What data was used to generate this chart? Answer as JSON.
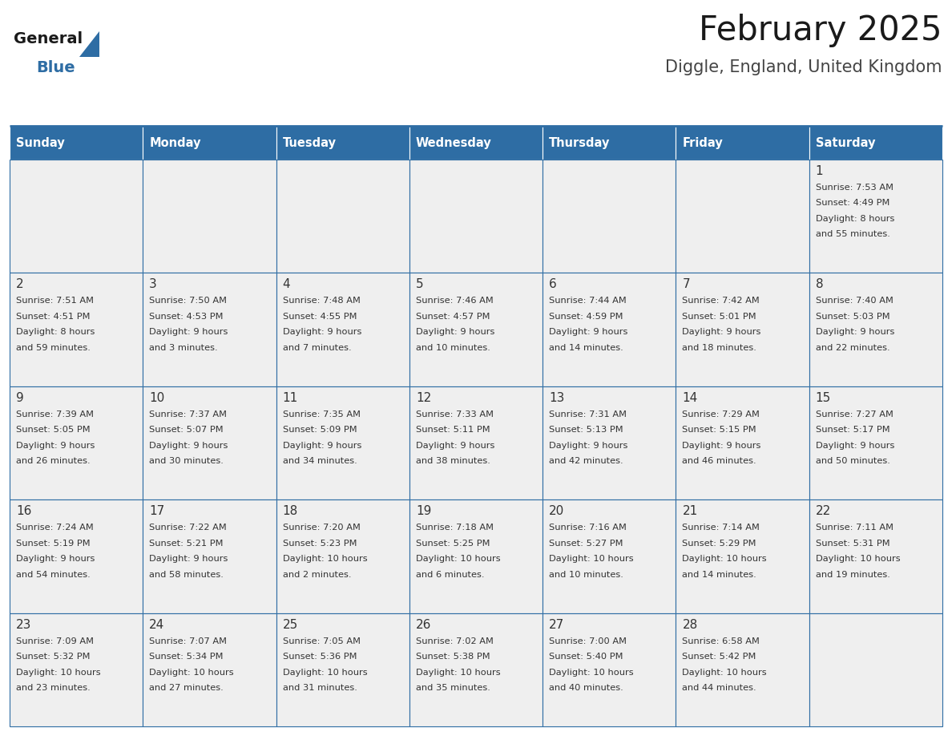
{
  "title": "February 2025",
  "subtitle": "Diggle, England, United Kingdom",
  "days_of_week": [
    "Sunday",
    "Monday",
    "Tuesday",
    "Wednesday",
    "Thursday",
    "Friday",
    "Saturday"
  ],
  "header_bg": "#2E6DA4",
  "header_text": "#FFFFFF",
  "cell_bg": "#EFEFEF",
  "border_color": "#2E6DA4",
  "cell_border_color": "#2E6DA4",
  "text_color": "#333333",
  "day_num_color": "#333333",
  "title_color": "#1a1a1a",
  "subtitle_color": "#444444",
  "logo_general_color": "#1a1a1a",
  "logo_blue_color": "#2E6DA4",
  "fig_width": 11.88,
  "fig_height": 9.18,
  "dpi": 100,
  "calendar_data": [
    [
      {
        "day": 0,
        "sunrise": "",
        "sunset": "",
        "daylight_line1": "",
        "daylight_line2": ""
      },
      {
        "day": 0,
        "sunrise": "",
        "sunset": "",
        "daylight_line1": "",
        "daylight_line2": ""
      },
      {
        "day": 0,
        "sunrise": "",
        "sunset": "",
        "daylight_line1": "",
        "daylight_line2": ""
      },
      {
        "day": 0,
        "sunrise": "",
        "sunset": "",
        "daylight_line1": "",
        "daylight_line2": ""
      },
      {
        "day": 0,
        "sunrise": "",
        "sunset": "",
        "daylight_line1": "",
        "daylight_line2": ""
      },
      {
        "day": 0,
        "sunrise": "",
        "sunset": "",
        "daylight_line1": "",
        "daylight_line2": ""
      },
      {
        "day": 1,
        "sunrise": "7:53 AM",
        "sunset": "4:49 PM",
        "daylight_line1": "Daylight: 8 hours",
        "daylight_line2": "and 55 minutes."
      }
    ],
    [
      {
        "day": 2,
        "sunrise": "7:51 AM",
        "sunset": "4:51 PM",
        "daylight_line1": "Daylight: 8 hours",
        "daylight_line2": "and 59 minutes."
      },
      {
        "day": 3,
        "sunrise": "7:50 AM",
        "sunset": "4:53 PM",
        "daylight_line1": "Daylight: 9 hours",
        "daylight_line2": "and 3 minutes."
      },
      {
        "day": 4,
        "sunrise": "7:48 AM",
        "sunset": "4:55 PM",
        "daylight_line1": "Daylight: 9 hours",
        "daylight_line2": "and 7 minutes."
      },
      {
        "day": 5,
        "sunrise": "7:46 AM",
        "sunset": "4:57 PM",
        "daylight_line1": "Daylight: 9 hours",
        "daylight_line2": "and 10 minutes."
      },
      {
        "day": 6,
        "sunrise": "7:44 AM",
        "sunset": "4:59 PM",
        "daylight_line1": "Daylight: 9 hours",
        "daylight_line2": "and 14 minutes."
      },
      {
        "day": 7,
        "sunrise": "7:42 AM",
        "sunset": "5:01 PM",
        "daylight_line1": "Daylight: 9 hours",
        "daylight_line2": "and 18 minutes."
      },
      {
        "day": 8,
        "sunrise": "7:40 AM",
        "sunset": "5:03 PM",
        "daylight_line1": "Daylight: 9 hours",
        "daylight_line2": "and 22 minutes."
      }
    ],
    [
      {
        "day": 9,
        "sunrise": "7:39 AM",
        "sunset": "5:05 PM",
        "daylight_line1": "Daylight: 9 hours",
        "daylight_line2": "and 26 minutes."
      },
      {
        "day": 10,
        "sunrise": "7:37 AM",
        "sunset": "5:07 PM",
        "daylight_line1": "Daylight: 9 hours",
        "daylight_line2": "and 30 minutes."
      },
      {
        "day": 11,
        "sunrise": "7:35 AM",
        "sunset": "5:09 PM",
        "daylight_line1": "Daylight: 9 hours",
        "daylight_line2": "and 34 minutes."
      },
      {
        "day": 12,
        "sunrise": "7:33 AM",
        "sunset": "5:11 PM",
        "daylight_line1": "Daylight: 9 hours",
        "daylight_line2": "and 38 minutes."
      },
      {
        "day": 13,
        "sunrise": "7:31 AM",
        "sunset": "5:13 PM",
        "daylight_line1": "Daylight: 9 hours",
        "daylight_line2": "and 42 minutes."
      },
      {
        "day": 14,
        "sunrise": "7:29 AM",
        "sunset": "5:15 PM",
        "daylight_line1": "Daylight: 9 hours",
        "daylight_line2": "and 46 minutes."
      },
      {
        "day": 15,
        "sunrise": "7:27 AM",
        "sunset": "5:17 PM",
        "daylight_line1": "Daylight: 9 hours",
        "daylight_line2": "and 50 minutes."
      }
    ],
    [
      {
        "day": 16,
        "sunrise": "7:24 AM",
        "sunset": "5:19 PM",
        "daylight_line1": "Daylight: 9 hours",
        "daylight_line2": "and 54 minutes."
      },
      {
        "day": 17,
        "sunrise": "7:22 AM",
        "sunset": "5:21 PM",
        "daylight_line1": "Daylight: 9 hours",
        "daylight_line2": "and 58 minutes."
      },
      {
        "day": 18,
        "sunrise": "7:20 AM",
        "sunset": "5:23 PM",
        "daylight_line1": "Daylight: 10 hours",
        "daylight_line2": "and 2 minutes."
      },
      {
        "day": 19,
        "sunrise": "7:18 AM",
        "sunset": "5:25 PM",
        "daylight_line1": "Daylight: 10 hours",
        "daylight_line2": "and 6 minutes."
      },
      {
        "day": 20,
        "sunrise": "7:16 AM",
        "sunset": "5:27 PM",
        "daylight_line1": "Daylight: 10 hours",
        "daylight_line2": "and 10 minutes."
      },
      {
        "day": 21,
        "sunrise": "7:14 AM",
        "sunset": "5:29 PM",
        "daylight_line1": "Daylight: 10 hours",
        "daylight_line2": "and 14 minutes."
      },
      {
        "day": 22,
        "sunrise": "7:11 AM",
        "sunset": "5:31 PM",
        "daylight_line1": "Daylight: 10 hours",
        "daylight_line2": "and 19 minutes."
      }
    ],
    [
      {
        "day": 23,
        "sunrise": "7:09 AM",
        "sunset": "5:32 PM",
        "daylight_line1": "Daylight: 10 hours",
        "daylight_line2": "and 23 minutes."
      },
      {
        "day": 24,
        "sunrise": "7:07 AM",
        "sunset": "5:34 PM",
        "daylight_line1": "Daylight: 10 hours",
        "daylight_line2": "and 27 minutes."
      },
      {
        "day": 25,
        "sunrise": "7:05 AM",
        "sunset": "5:36 PM",
        "daylight_line1": "Daylight: 10 hours",
        "daylight_line2": "and 31 minutes."
      },
      {
        "day": 26,
        "sunrise": "7:02 AM",
        "sunset": "5:38 PM",
        "daylight_line1": "Daylight: 10 hours",
        "daylight_line2": "and 35 minutes."
      },
      {
        "day": 27,
        "sunrise": "7:00 AM",
        "sunset": "5:40 PM",
        "daylight_line1": "Daylight: 10 hours",
        "daylight_line2": "and 40 minutes."
      },
      {
        "day": 28,
        "sunrise": "6:58 AM",
        "sunset": "5:42 PM",
        "daylight_line1": "Daylight: 10 hours",
        "daylight_line2": "and 44 minutes."
      },
      {
        "day": 0,
        "sunrise": "",
        "sunset": "",
        "daylight_line1": "",
        "daylight_line2": ""
      }
    ]
  ]
}
